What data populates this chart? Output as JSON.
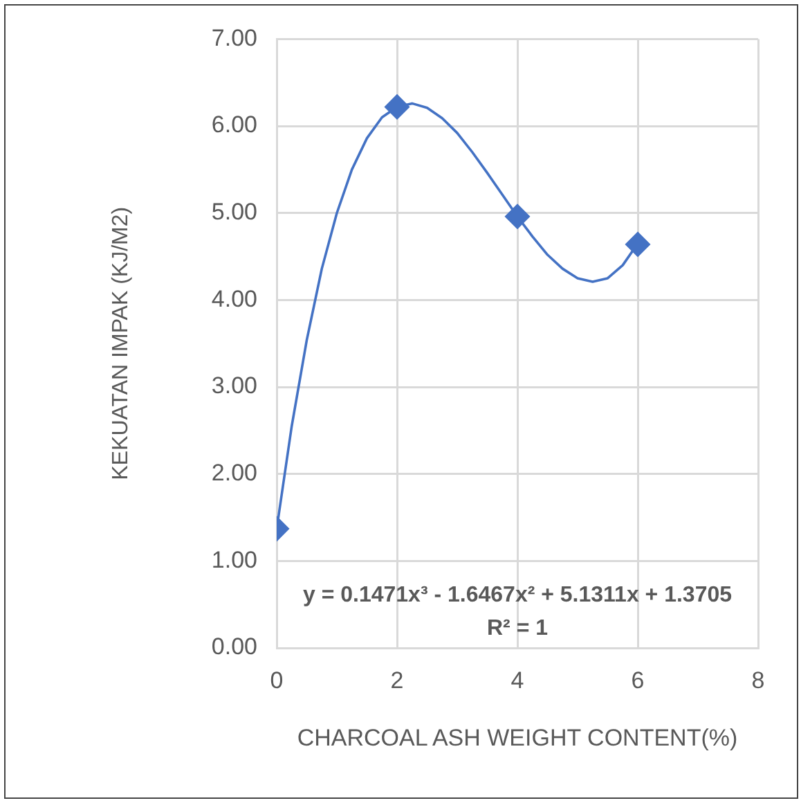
{
  "chart_data": {
    "type": "scatter",
    "xlabel": "CHARCOAL ASH WEIGHT CONTENT(%)",
    "ylabel": "KEKUATAN IMPAK (KJ/M2)",
    "annotations": [
      "y = 0.1471x³ - 1.6467x² + 5.1311x + 1.3705",
      "R² = 1"
    ],
    "series": [
      {
        "type": "scatter",
        "color": "#4472c4",
        "marker": "diamond",
        "x": [
          0,
          2,
          4,
          6
        ],
        "values": [
          1.37,
          6.22,
          4.96,
          4.64
        ]
      },
      {
        "type": "line",
        "color": "#4472c4",
        "marker": "none",
        "x": [
          0,
          0.25,
          0.5,
          0.75,
          1,
          1.25,
          1.5,
          1.75,
          2,
          2.25,
          2.5,
          2.75,
          3,
          3.25,
          3.5,
          3.75,
          4,
          4.25,
          4.5,
          4.75,
          5,
          5.25,
          5.5,
          5.75,
          6
        ],
        "values": [
          1.37,
          2.55,
          3.54,
          4.36,
          5.0,
          5.5,
          5.86,
          6.1,
          6.22,
          6.26,
          6.21,
          6.09,
          5.92,
          5.7,
          5.46,
          5.21,
          4.96,
          4.73,
          4.52,
          4.36,
          4.25,
          4.21,
          4.25,
          4.4,
          4.65
        ]
      }
    ],
    "xlim": [
      0,
      8
    ],
    "xticks": [
      0,
      2,
      4,
      6,
      8
    ],
    "ylim": [
      0,
      7
    ],
    "yticks": [
      {
        "value": 0,
        "label": "0.00"
      },
      {
        "value": 1,
        "label": "1.00"
      },
      {
        "value": 2,
        "label": "2.00"
      },
      {
        "value": 3,
        "label": "3.00"
      },
      {
        "value": 4,
        "label": "4.00"
      },
      {
        "value": 5,
        "label": "5.00"
      },
      {
        "value": 6,
        "label": "6.00"
      },
      {
        "value": 7,
        "label": "7.00"
      }
    ],
    "grid": true,
    "legend": false
  }
}
